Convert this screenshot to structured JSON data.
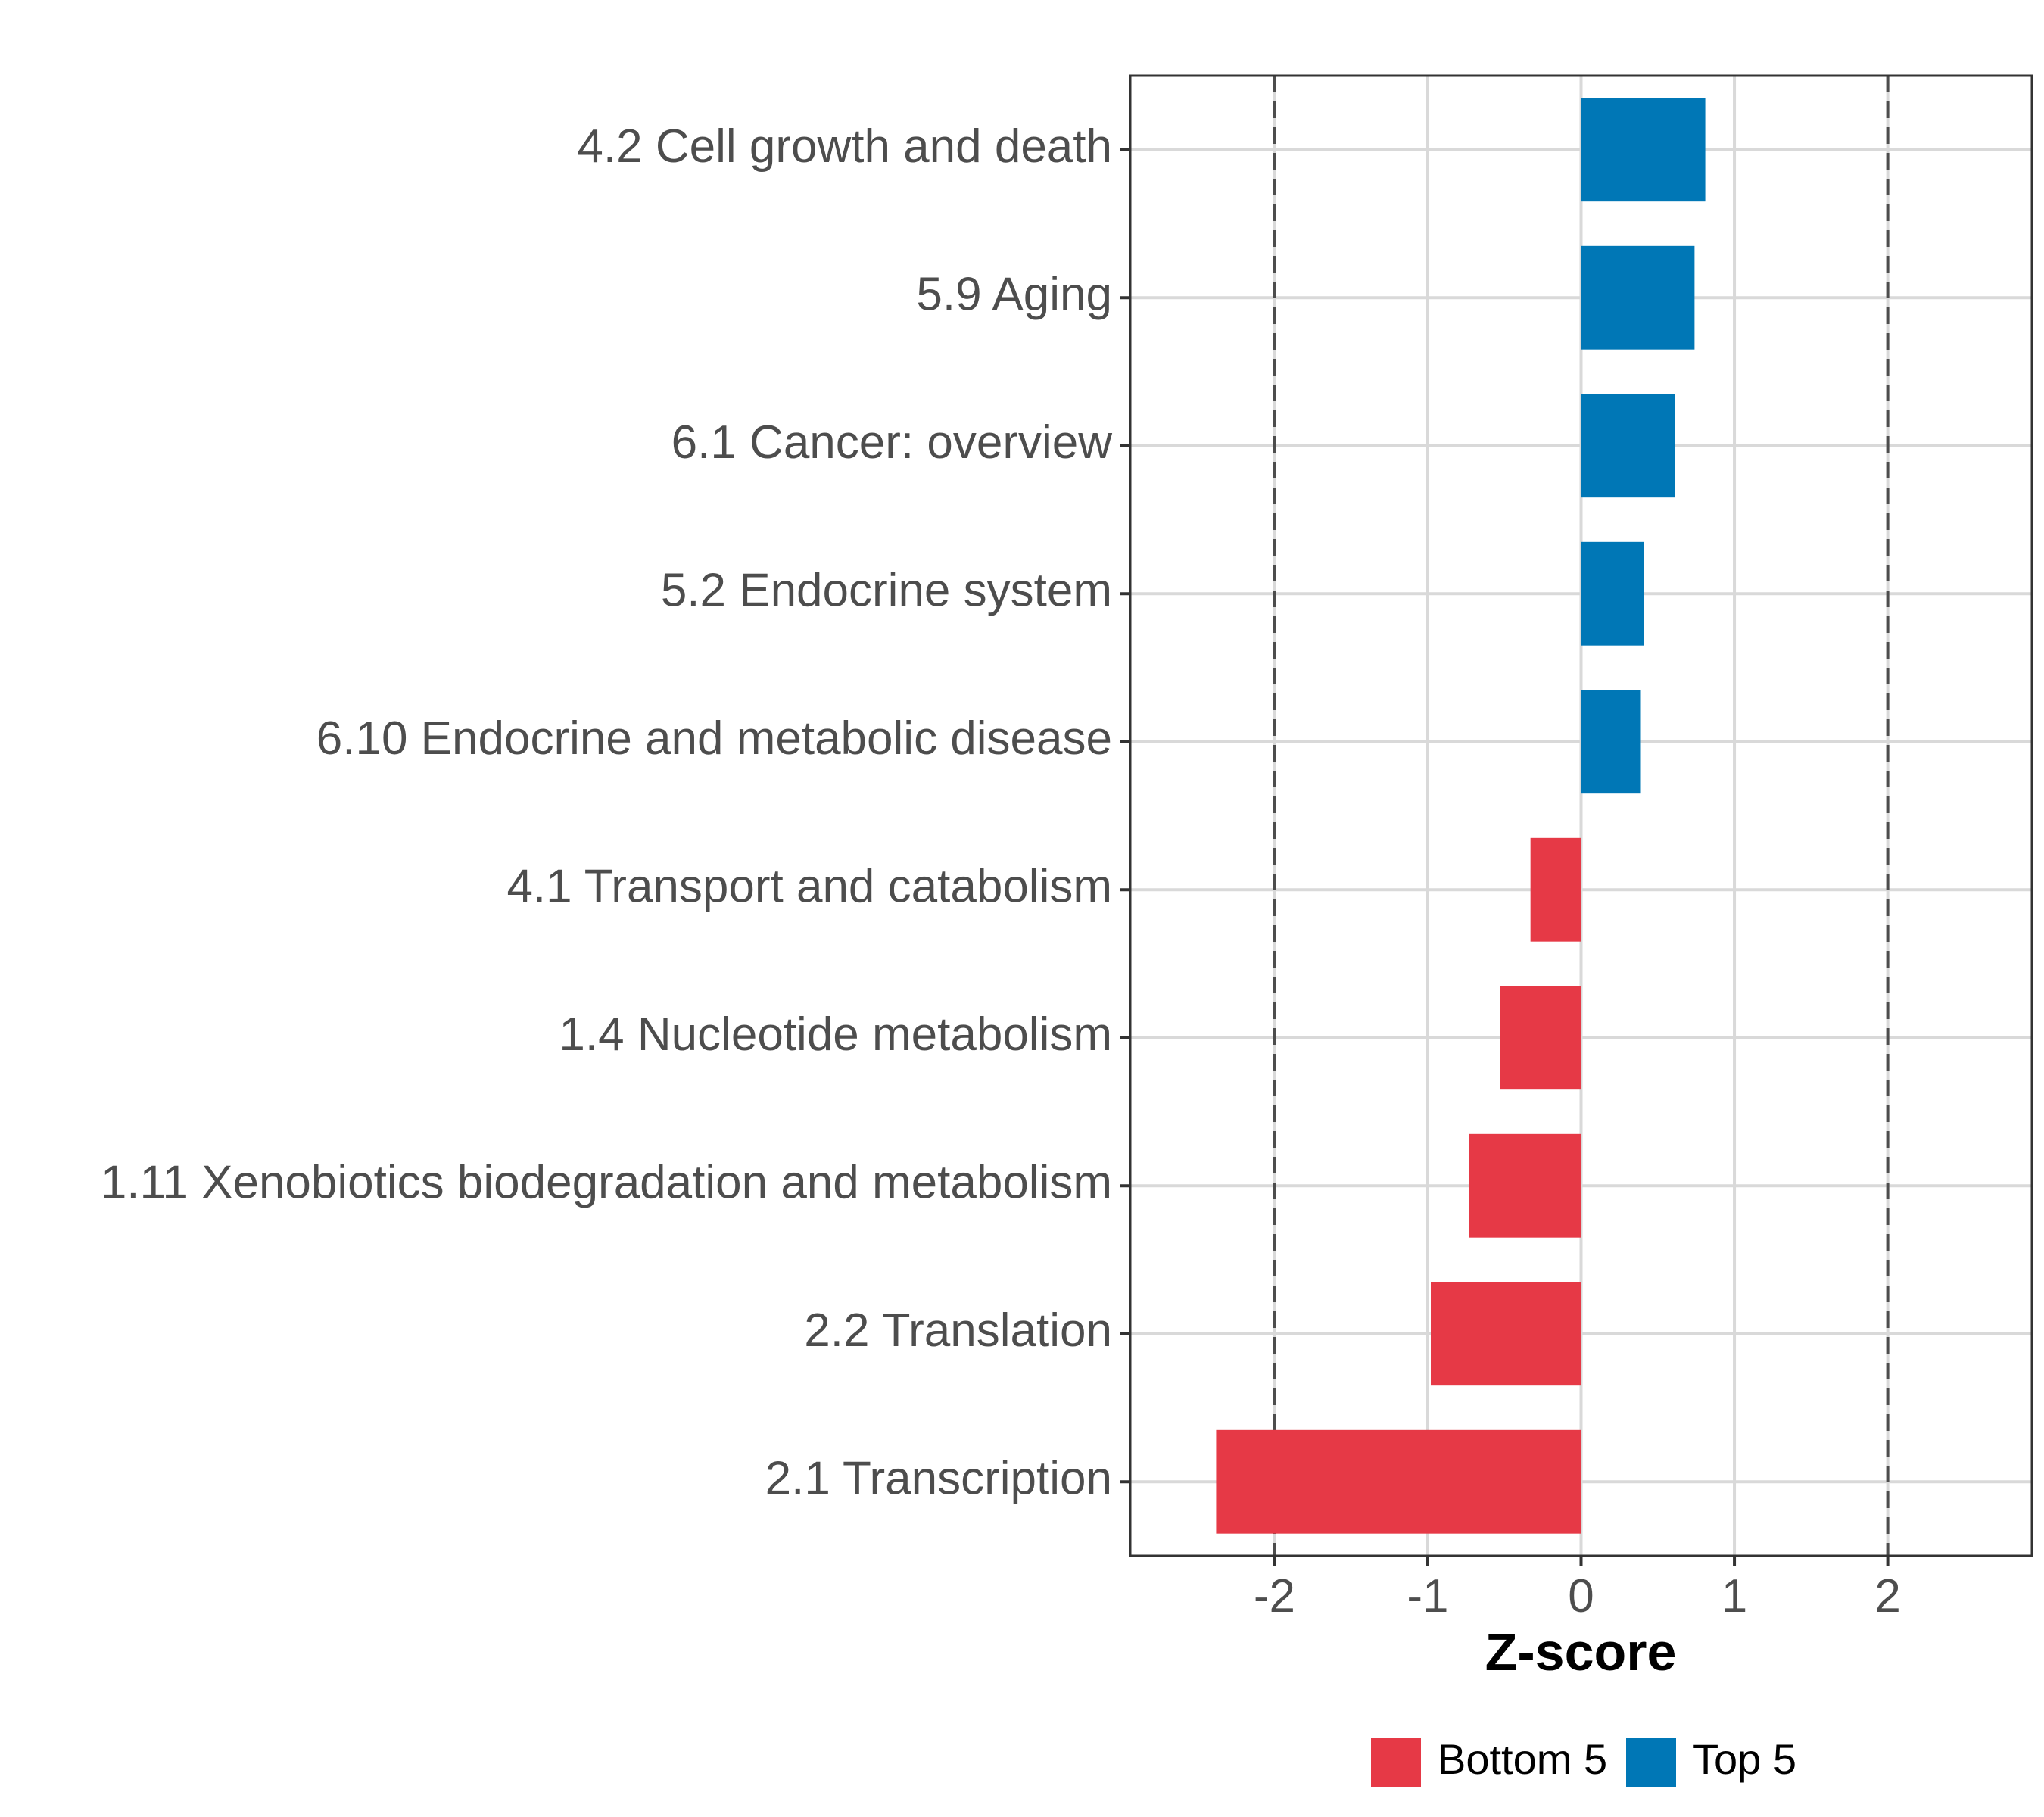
{
  "chart_data": {
    "type": "bar",
    "orientation": "horizontal",
    "categories": [
      "4.2 Cell growth and death",
      "5.9 Aging",
      "6.1 Cancer: overview",
      "5.2 Endocrine system",
      "6.10 Endocrine and metabolic disease",
      "4.1 Transport and catabolism",
      "1.4 Nucleotide metabolism",
      "1.11 Xenobiotics biodegradation and metabolism",
      "2.2 Translation",
      "2.1 Transcription"
    ],
    "values": [
      0.81,
      0.74,
      0.61,
      0.41,
      0.39,
      -0.33,
      -0.53,
      -0.73,
      -0.98,
      -2.38
    ],
    "groups": [
      "Top 5",
      "Top 5",
      "Top 5",
      "Top 5",
      "Top 5",
      "Bottom 5",
      "Bottom 5",
      "Bottom 5",
      "Bottom 5",
      "Bottom 5"
    ],
    "xlabel": "Z-score",
    "ylabel": "",
    "xlim": [
      -2.94,
      2.94
    ],
    "xticks": [
      -2,
      -1,
      0,
      1,
      2
    ],
    "xtick_labels": [
      "-2",
      "-1",
      "0",
      "1",
      "2"
    ],
    "reference_lines": [
      -2,
      2
    ],
    "legend": {
      "position": "bottom",
      "items": [
        {
          "label": "Bottom 5",
          "color": "#E63946"
        },
        {
          "label": "Top 5",
          "color": "#0077B6"
        }
      ]
    },
    "grid": true
  }
}
